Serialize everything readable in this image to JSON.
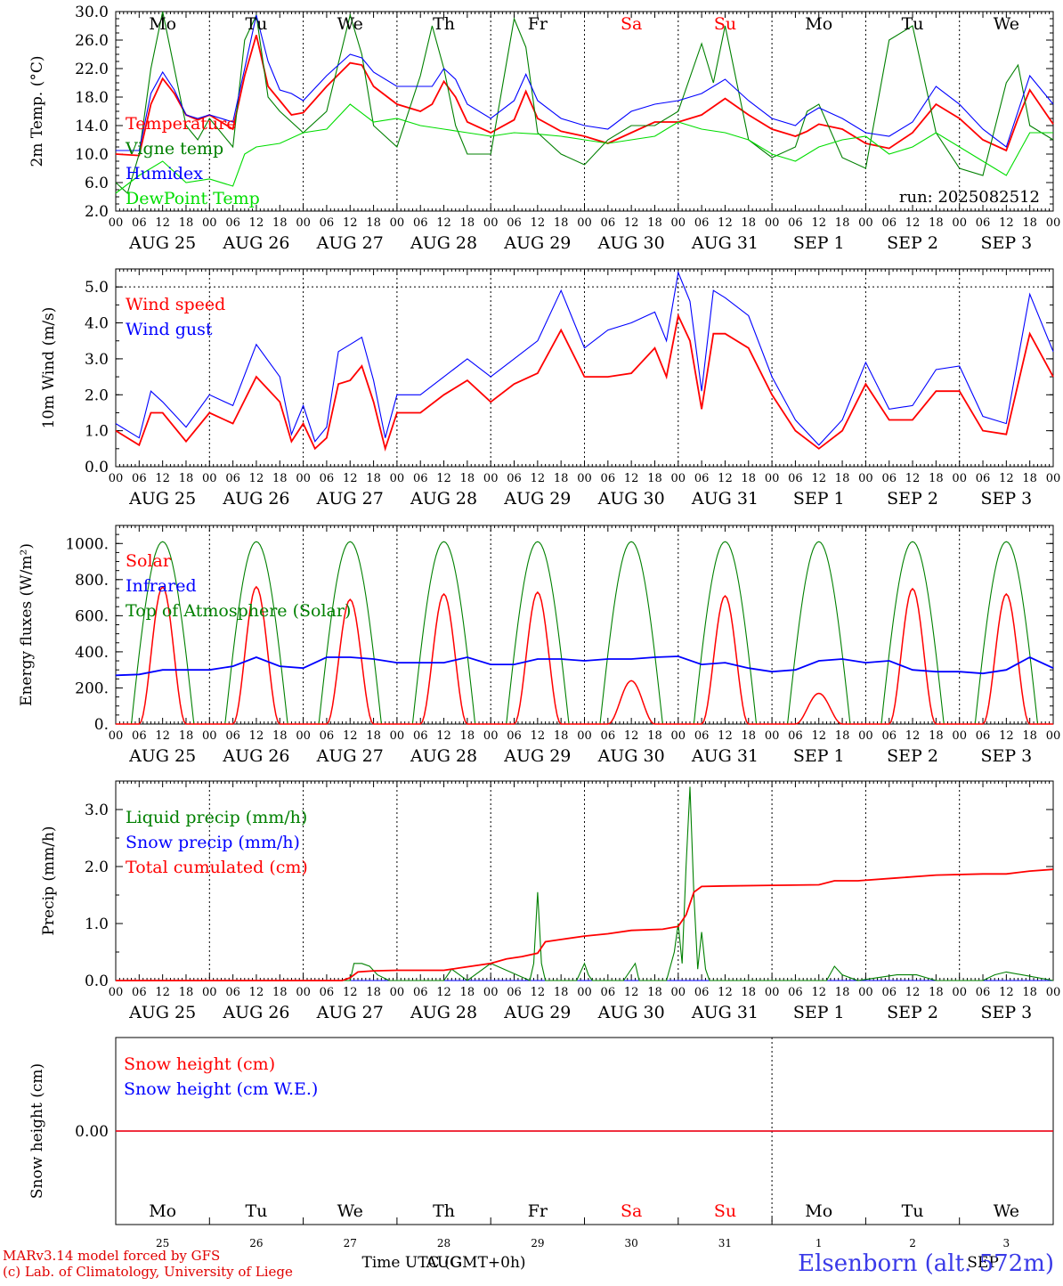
{
  "colors": {
    "red": "#ff0000",
    "green": "#008000",
    "blue": "#0000ff",
    "lightgreen": "#00dd00",
    "axis": "#000000"
  },
  "day_names": [
    "Mo",
    "Tu",
    "We",
    "Th",
    "Fr",
    "Sa",
    "Su",
    "Mo",
    "Tu",
    "We"
  ],
  "weekend_days": [
    5,
    6
  ],
  "date_labels": [
    "AUG 25",
    "AUG 26",
    "AUG 27",
    "AUG 28",
    "AUG 29",
    "AUG 30",
    "AUG 31",
    "SEP  1",
    "SEP  2",
    "SEP  3"
  ],
  "hour_ticks": [
    "00",
    "06",
    "12",
    "18"
  ],
  "last_hour_tick": "00",
  "day_numbers": [
    "25",
    "26",
    "27",
    "28",
    "29",
    "30",
    "31",
    "1",
    "2",
    "3"
  ],
  "bottom_month_labels": [
    "AUG",
    "SEP"
  ],
  "xlabel": "Time UTC (GMT+0h)",
  "footer": {
    "line1": "MARv3.14 model forced by GFS",
    "line2": "(c) Lab. of Climatology, University of Liege",
    "station": "Elsenborn (alt.  572m)"
  },
  "chart_data": [
    {
      "type": "line",
      "ylabel": "2m Temp. (°C)",
      "ylim": [
        2,
        30
      ],
      "yticks": [
        "2.0",
        "6.0",
        "10.0",
        "14.0",
        "18.0",
        "22.0",
        "26.0",
        "30.0"
      ],
      "run_label": "run: 2025082512",
      "x_unit": "hours since AUG 25 00 UTC",
      "series": [
        {
          "name": "Temperature",
          "color": "red",
          "x": [
            0,
            6,
            9,
            12,
            15,
            18,
            21,
            24,
            30,
            33,
            36,
            39,
            42,
            45,
            48,
            54,
            60,
            63,
            66,
            72,
            78,
            81,
            84,
            87,
            90,
            96,
            102,
            105,
            108,
            114,
            120,
            126,
            132,
            138,
            144,
            150,
            156,
            162,
            168,
            174,
            177,
            180,
            186,
            192,
            198,
            204,
            210,
            216,
            222,
            228,
            231,
            234,
            240
          ],
          "values": [
            10,
            9.8,
            17,
            20.6,
            18.5,
            15.5,
            14.8,
            15.5,
            13.5,
            21,
            26.7,
            19.5,
            17.5,
            15.5,
            15.8,
            19.5,
            22.8,
            22.5,
            19.5,
            17,
            16,
            17,
            20.2,
            18,
            14.5,
            13,
            14.8,
            18.8,
            15,
            13.2,
            12.5,
            11.5,
            13,
            14.5,
            14.5,
            15.5,
            17.8,
            15.5,
            13.5,
            12.5,
            13.2,
            14.2,
            13.5,
            11.5,
            10.8,
            13,
            17,
            15,
            12,
            10.5,
            15,
            19,
            14.2
          ]
        },
        {
          "name": "Vigne temp",
          "color": "green",
          "x": [
            0,
            3,
            6,
            9,
            12,
            15,
            18,
            21,
            24,
            30,
            33,
            36,
            39,
            42,
            48,
            54,
            60,
            63,
            66,
            72,
            78,
            81,
            84,
            87,
            90,
            96,
            102,
            105,
            108,
            114,
            120,
            126,
            132,
            138,
            144,
            150,
            153,
            156,
            159,
            162,
            168,
            174,
            177,
            180,
            186,
            192,
            198,
            204,
            210,
            216,
            222,
            228,
            231,
            234,
            240
          ],
          "values": [
            6,
            4.5,
            10,
            22,
            30,
            22,
            14,
            12,
            15,
            11,
            26,
            29.5,
            18,
            16,
            13,
            16,
            29.5,
            24,
            14,
            11,
            21,
            28,
            22,
            14,
            10,
            10,
            29,
            25,
            13,
            10,
            8.5,
            12,
            14,
            14,
            16,
            25.5,
            20,
            28,
            20,
            12,
            9.5,
            11,
            16,
            17,
            9.5,
            8,
            26,
            28,
            13,
            8,
            7,
            20,
            22.5,
            14,
            12
          ]
        },
        {
          "name": "Humidex",
          "color": "blue",
          "x": [
            0,
            6,
            9,
            12,
            15,
            18,
            21,
            24,
            30,
            33,
            36,
            39,
            42,
            45,
            48,
            54,
            60,
            63,
            66,
            72,
            78,
            81,
            84,
            87,
            90,
            96,
            102,
            105,
            108,
            114,
            120,
            126,
            132,
            138,
            144,
            150,
            156,
            162,
            168,
            174,
            177,
            180,
            186,
            192,
            198,
            204,
            210,
            216,
            222,
            228,
            231,
            234,
            240
          ],
          "values": [
            10.5,
            10.5,
            18.5,
            21.5,
            19,
            15.5,
            15,
            15.5,
            14.5,
            22,
            29.5,
            23,
            19,
            18.5,
            17.5,
            21,
            24,
            23.5,
            21.5,
            19.5,
            19.5,
            19.5,
            22,
            20.5,
            17,
            15,
            17.5,
            21.2,
            17.5,
            15,
            14,
            13.5,
            16,
            17,
            17.5,
            18.5,
            20.5,
            17.5,
            15,
            14,
            15.5,
            16.5,
            15,
            13,
            12.5,
            14.5,
            19.5,
            17,
            13.5,
            11,
            16,
            21,
            17
          ]
        },
        {
          "name": "DewPoint Temp",
          "color": "lightgreen",
          "x": [
            0,
            6,
            12,
            18,
            24,
            30,
            33,
            36,
            42,
            48,
            54,
            60,
            66,
            72,
            78,
            84,
            90,
            96,
            102,
            108,
            114,
            120,
            126,
            132,
            138,
            144,
            150,
            156,
            162,
            168,
            174,
            180,
            186,
            192,
            198,
            204,
            210,
            216,
            222,
            228,
            234,
            240
          ],
          "values": [
            4.5,
            7,
            9,
            6,
            6.5,
            5.5,
            10,
            11,
            11.5,
            13,
            13.5,
            17,
            14.5,
            15,
            14,
            13.5,
            13,
            12.5,
            13,
            12.8,
            12.5,
            12,
            11.5,
            12,
            12.5,
            14.5,
            13.5,
            13,
            12,
            10,
            9,
            11,
            12,
            12.5,
            10,
            11,
            13,
            11,
            9,
            7,
            13,
            13
          ]
        }
      ]
    },
    {
      "type": "line",
      "ylabel": "10m Wind (m/s)",
      "ylim": [
        0,
        5.5
      ],
      "yticks": [
        "0.0",
        "1.0",
        "2.0",
        "3.0",
        "4.0",
        "5.0"
      ],
      "ref_line": 5.0,
      "series": [
        {
          "name": "Wind speed",
          "color": "red",
          "x": [
            0,
            6,
            9,
            12,
            18,
            24,
            30,
            36,
            42,
            45,
            48,
            51,
            54,
            57,
            60,
            63,
            66,
            69,
            72,
            78,
            84,
            90,
            96,
            102,
            108,
            114,
            120,
            126,
            132,
            138,
            141,
            144,
            147,
            150,
            153,
            156,
            162,
            168,
            174,
            180,
            186,
            192,
            198,
            204,
            210,
            216,
            222,
            228,
            234,
            240
          ],
          "values": [
            1,
            0.6,
            1.5,
            1.5,
            0.7,
            1.5,
            1.2,
            2.5,
            1.8,
            0.7,
            1.2,
            0.5,
            0.8,
            2.3,
            2.4,
            2.8,
            1.8,
            0.5,
            1.5,
            1.5,
            2,
            2.4,
            1.8,
            2.3,
            2.6,
            3.8,
            2.5,
            2.5,
            2.6,
            3.3,
            2.5,
            4.2,
            3.5,
            1.6,
            3.7,
            3.7,
            3.3,
            2,
            1,
            0.5,
            1,
            2.3,
            1.3,
            1.3,
            2.1,
            2.1,
            1,
            0.9,
            3.7,
            2.5
          ]
        },
        {
          "name": "Wind gust",
          "color": "blue",
          "x": [
            0,
            6,
            9,
            12,
            18,
            24,
            30,
            36,
            42,
            45,
            48,
            51,
            54,
            57,
            60,
            63,
            66,
            69,
            72,
            78,
            84,
            90,
            96,
            102,
            108,
            114,
            120,
            126,
            132,
            138,
            141,
            144,
            147,
            150,
            153,
            156,
            162,
            168,
            174,
            180,
            186,
            192,
            198,
            204,
            210,
            216,
            222,
            228,
            234,
            240
          ],
          "values": [
            1.2,
            0.8,
            2.1,
            1.8,
            1.1,
            2,
            1.7,
            3.4,
            2.5,
            0.9,
            1.7,
            0.7,
            1.1,
            3.2,
            3.4,
            3.6,
            2.4,
            0.8,
            2,
            2,
            2.5,
            3,
            2.5,
            3,
            3.5,
            4.9,
            3.3,
            3.8,
            4,
            4.3,
            3.5,
            5.4,
            4.6,
            2.1,
            4.9,
            4.7,
            4.2,
            2.5,
            1.3,
            0.6,
            1.3,
            2.9,
            1.6,
            1.7,
            2.7,
            2.8,
            1.4,
            1.2,
            4.8,
            3.2
          ]
        }
      ]
    },
    {
      "type": "line",
      "ylabel": "Energy fluxes (W/m²)",
      "ylim": [
        0,
        1100
      ],
      "yticks": [
        "0.",
        "200.",
        "400.",
        "600.",
        "800.",
        "1000."
      ],
      "series": [
        {
          "name": "Solar",
          "color": "red",
          "peaks": [
            [
              12,
              760
            ],
            [
              36,
              760
            ],
            [
              60,
              690
            ],
            [
              84,
              720
            ],
            [
              108,
              730
            ],
            [
              132,
              240
            ],
            [
              157,
              710
            ],
            [
              180,
              170
            ],
            [
              204,
              750
            ],
            [
              228,
              720
            ]
          ]
        },
        {
          "name": "Infrared",
          "color": "blue",
          "x": [
            0,
            6,
            12,
            18,
            24,
            30,
            36,
            42,
            48,
            54,
            60,
            66,
            72,
            78,
            84,
            90,
            96,
            102,
            108,
            114,
            120,
            126,
            132,
            138,
            144,
            150,
            156,
            162,
            168,
            174,
            180,
            186,
            192,
            198,
            204,
            210,
            216,
            222,
            228,
            234,
            240
          ],
          "values": [
            270,
            275,
            300,
            300,
            300,
            320,
            370,
            320,
            310,
            370,
            370,
            360,
            340,
            340,
            340,
            370,
            330,
            330,
            360,
            360,
            350,
            360,
            360,
            370,
            375,
            330,
            340,
            310,
            290,
            300,
            350,
            360,
            340,
            350,
            300,
            290,
            290,
            280,
            300,
            370,
            310
          ]
        },
        {
          "name": "Top of Atmosphere (Solar)",
          "color": "green",
          "peak": 1010
        }
      ]
    },
    {
      "type": "line",
      "ylabel": "Precip (mm/h)",
      "ylim": [
        0,
        3.5
      ],
      "yticks": [
        "0.0",
        "1.0",
        "2.0",
        "3.0"
      ],
      "series": [
        {
          "name": "Liquid precip (mm/h)",
          "color": "green",
          "x": [
            0,
            40,
            60,
            61,
            63,
            65,
            67,
            70,
            72,
            84,
            86,
            88,
            90,
            96,
            106,
            107,
            108,
            109,
            110,
            112,
            114,
            118,
            120,
            121,
            122,
            125,
            130,
            133,
            134,
            136,
            138,
            141,
            143,
            144,
            145,
            146,
            147,
            148,
            149,
            150,
            151,
            152,
            154,
            156,
            160,
            162,
            182,
            184,
            186,
            190,
            200,
            205,
            210,
            222,
            225,
            228,
            232,
            240
          ],
          "values": [
            0,
            0,
            0,
            0.3,
            0.3,
            0.25,
            0.1,
            0,
            0,
            0,
            0.2,
            0.1,
            0,
            0.3,
            0,
            0.3,
            1.55,
            0.3,
            0,
            0,
            0,
            0,
            0.3,
            0.1,
            0,
            0,
            0,
            0.3,
            0,
            0,
            0,
            0,
            0.5,
            1,
            0.3,
            2,
            3.4,
            1.5,
            0.2,
            0.85,
            0.2,
            0,
            0,
            0,
            0,
            0,
            0,
            0.25,
            0.1,
            0,
            0.1,
            0.1,
            0,
            0,
            0.1,
            0.15,
            0.1,
            0
          ]
        },
        {
          "name": "Snow precip (mm/h)",
          "color": "blue",
          "x": [
            0,
            240
          ],
          "values": [
            0,
            0
          ]
        },
        {
          "name": "Total cumulated (cm)",
          "color": "red",
          "x": [
            0,
            40,
            58,
            60,
            62,
            66,
            72,
            84,
            88,
            96,
            100,
            104,
            108,
            110,
            114,
            120,
            126,
            132,
            140,
            144,
            146,
            148,
            150,
            156,
            168,
            180,
            184,
            190,
            200,
            210,
            222,
            228,
            234,
            240
          ],
          "values": [
            0,
            0,
            0,
            0.05,
            0.15,
            0.17,
            0.18,
            0.18,
            0.22,
            0.3,
            0.38,
            0.42,
            0.48,
            0.68,
            0.72,
            0.78,
            0.82,
            0.88,
            0.9,
            0.95,
            1.15,
            1.55,
            1.65,
            1.66,
            1.67,
            1.68,
            1.75,
            1.75,
            1.8,
            1.85,
            1.87,
            1.87,
            1.92,
            1.95
          ]
        }
      ]
    },
    {
      "type": "line",
      "ylabel": "Snow height (cm)",
      "ytick": "0.00",
      "series": [
        {
          "name": "Snow height (cm)",
          "color": "red",
          "x": [
            0,
            240
          ],
          "values": [
            0,
            0
          ]
        },
        {
          "name": "Snow height (cm W.E.)",
          "color": "blue",
          "x": [
            0,
            240
          ],
          "values": [
            0,
            0
          ]
        }
      ]
    }
  ]
}
